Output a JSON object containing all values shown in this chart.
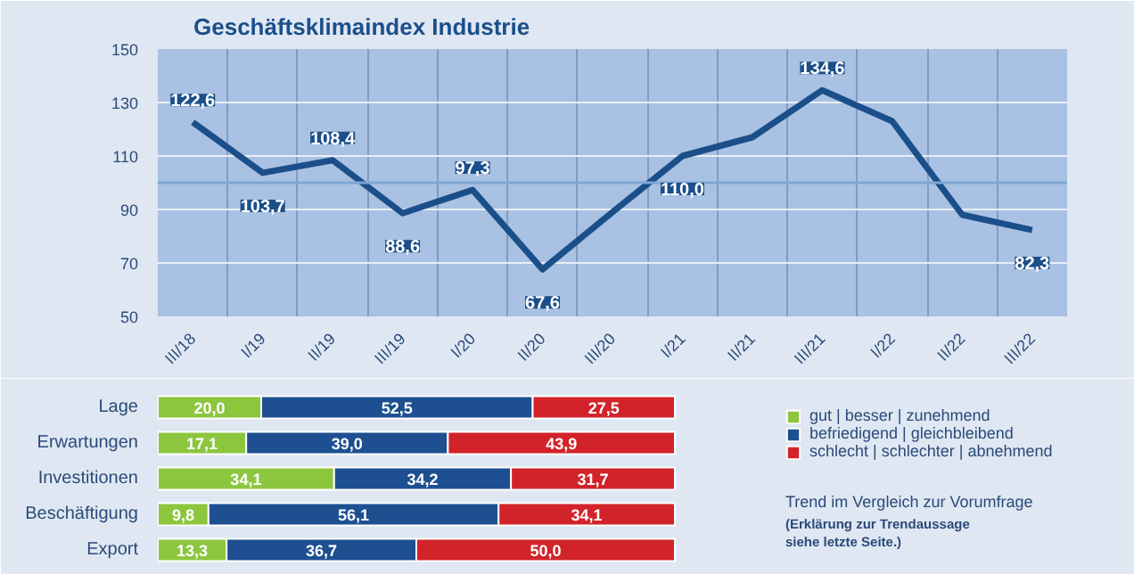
{
  "chart_data": [
    {
      "type": "line",
      "title": "Geschäftsklimaindex Industrie",
      "categories": [
        "III/18",
        "I/19",
        "II/19",
        "III/19",
        "I/20",
        "II/20",
        "III/20",
        "I/21",
        "II/21",
        "III/21",
        "I/22",
        "II/22",
        "III/22"
      ],
      "series": [
        {
          "color": "#1b4f8a",
          "values": [
            122.6,
            103.7,
            108.4,
            88.6,
            97.3,
            67.6,
            89,
            110.0,
            117,
            134.6,
            123,
            88,
            82.3
          ],
          "value_labels": [
            "122,6",
            "103,7",
            "108,4",
            "88,6",
            "97,3",
            "67,6",
            null,
            "110,0",
            null,
            "134,6",
            null,
            null,
            "82,3"
          ]
        }
      ],
      "ylim": [
        50,
        150
      ],
      "yticks": [
        50,
        70,
        90,
        110,
        130,
        150
      ],
      "ref_lines": [
        {
          "axis": "y",
          "value": 100,
          "color": "#7fa6d6"
        }
      ],
      "grid": true,
      "marker": "none",
      "line_style": "solid"
    },
    {
      "type": "bar",
      "orientation": "horizontal",
      "stacked": true,
      "legend": "right",
      "categories": [
        "Lage",
        "Erwartungen",
        "Investitionen",
        "Beschäftigung",
        "Export"
      ],
      "series": [
        {
          "name": "gut | besser | zunehmend",
          "color": "#8cc63f",
          "values": [
            20.0,
            17.1,
            34.1,
            9.8,
            13.3
          ],
          "value_labels": [
            "20,0",
            "17,1",
            "34,1",
            "9,8",
            "13,3"
          ]
        },
        {
          "name": "befriedigend | gleichbleibend",
          "color": "#1d4f91",
          "values": [
            52.5,
            39.0,
            34.2,
            56.1,
            36.7
          ],
          "value_labels": [
            "52,5",
            "39,0",
            "34,2",
            "56,1",
            "36,7"
          ]
        },
        {
          "name": "schlecht | schlechter | abnehmend",
          "color": "#d2232a",
          "values": [
            27.5,
            43.9,
            31.7,
            34.1,
            50.0
          ],
          "value_labels": [
            "27,5",
            "43,9",
            "31,7",
            "34,1",
            "50,0"
          ]
        }
      ],
      "annotations": [
        "Trend im Vergleich zur Vorumfrage",
        "(Erklärung zur Trendaussage",
        "siehe letzte Seite.)"
      ]
    }
  ]
}
